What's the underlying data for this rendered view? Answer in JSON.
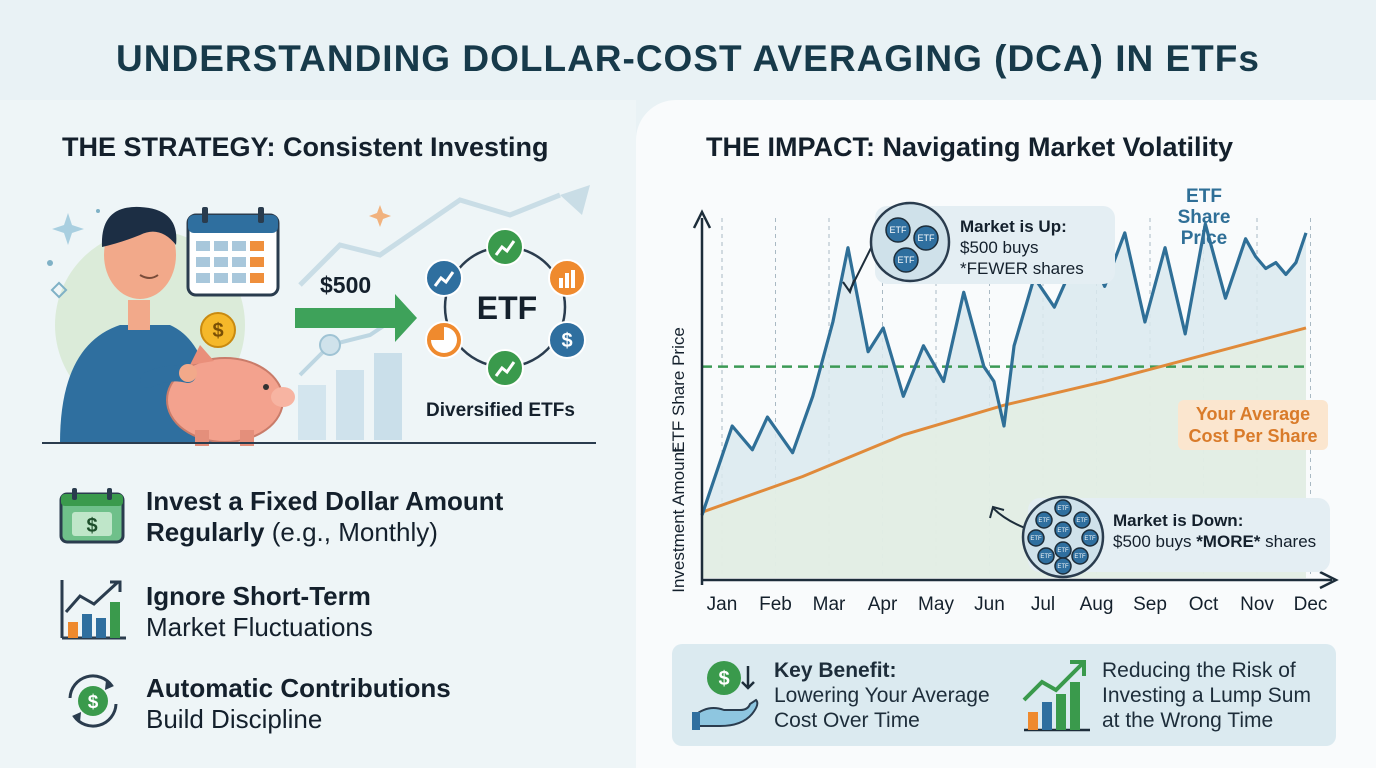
{
  "title": "UNDERSTANDING DOLLAR-COST AVERAGING (DCA) IN ETFs",
  "strategy": {
    "heading": "THE STRATEGY: Consistent Investing",
    "amount_label": "$500",
    "etf_label": "ETF",
    "diversified_label": "Diversified ETFs",
    "points": [
      {
        "strong": "Invest a Fixed Dollar Amount",
        "strong2": "Regularly",
        "rest": " (e.g., Monthly)"
      },
      {
        "strong": "Ignore Short-Term",
        "rest": "Market Fluctuations"
      },
      {
        "strong": "Automatic Contributions",
        "rest": "Build Discipline"
      }
    ]
  },
  "impact": {
    "heading": "THE IMPACT: Navigating Market Volatility",
    "callout_up": {
      "title": "Market is Up:",
      "line1": "$500 buys",
      "line2": "*FEWER shares",
      "coin_label": "ETF"
    },
    "callout_down": {
      "title": "Market is Down:",
      "line1_pre": "$500 buys ",
      "line1_bold": "*MORE*",
      "line1_post": " shares",
      "coin_label": "ETF"
    },
    "price_label": [
      "ETF",
      "Share",
      "Price"
    ],
    "avg_label": [
      "Your Average",
      "Cost Per Share"
    ]
  },
  "benefit": {
    "key_title": "Key Benefit:",
    "key_line1": "Lowering Your Average",
    "key_line2": "Cost Over Time",
    "risk_line1": "Reducing the Risk of",
    "risk_line2": "Investing a Lump Sum",
    "risk_line3": "at the Wrong Time"
  },
  "colors": {
    "price_line": "#2f6f97",
    "avg_line": "#e08a3a",
    "dashed": "#3c9a55",
    "accent_green": "#3a9a4c"
  },
  "chart_data": {
    "type": "line",
    "categories": [
      "Jan",
      "Feb",
      "Mar",
      "Apr",
      "May",
      "Jun",
      "Jul",
      "Aug",
      "Sep",
      "Oct",
      "Nov",
      "Dec"
    ],
    "ylabel_top": "ETF Share Price",
    "ylabel_bottom": "Investment Amount",
    "grid": "vertical dashed",
    "series": [
      {
        "name": "ETF Share Price",
        "x": [
          0,
          0.6,
          1,
          1.3,
          1.8,
          2.2,
          2.6,
          2.9,
          3.3,
          3.6,
          4,
          4.4,
          4.8,
          5.2,
          5.6,
          5.8,
          6,
          6.2,
          6.6,
          7,
          7.6,
          8,
          8.4,
          8.8,
          9.2,
          9.6,
          10,
          10.4,
          10.8,
          11,
          11.2,
          11.4,
          11.6,
          11.8,
          12
        ],
        "y": [
          0.05,
          0.35,
          0.27,
          0.38,
          0.26,
          0.45,
          0.7,
          0.95,
          0.6,
          0.68,
          0.45,
          0.62,
          0.5,
          0.8,
          0.55,
          0.5,
          0.35,
          0.62,
          0.85,
          0.75,
          0.98,
          0.82,
          1.0,
          0.7,
          0.95,
          0.66,
          1.03,
          0.78,
          0.98,
          0.92,
          0.88,
          0.9,
          0.86,
          0.9,
          1.0
        ]
      },
      {
        "name": "Your Average Cost Per Share",
        "x": [
          0,
          2,
          4,
          6,
          8,
          10,
          12
        ],
        "y": [
          0.06,
          0.18,
          0.32,
          0.42,
          0.5,
          0.59,
          0.68
        ]
      }
    ],
    "reference_line": {
      "y": 0.55,
      "style": "dashed"
    }
  }
}
